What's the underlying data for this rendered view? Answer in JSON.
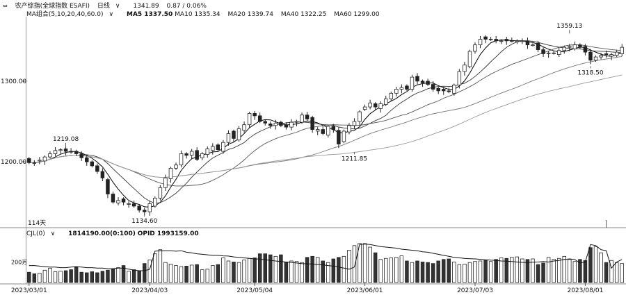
{
  "header": {
    "icons": "⇔",
    "index_name": "农产综指(全球指数 ESAFI)",
    "period": "日线",
    "last": "1341.89",
    "change": "0.87 / 0.06%"
  },
  "ma_header": {
    "label": "MA组合(5,10,20,40,60.0)",
    "ma5": "MA5 1337.50",
    "ma10": "MA10 1335.34",
    "ma20": "MA20 1339.74",
    "ma40": "MA40 1322.25",
    "ma60": "MA60 1299.00"
  },
  "volume_header": {
    "label": "CJL(0)",
    "cjl": "1814190.00(0:100)",
    "opid": "OPID 1993159.00"
  },
  "price_panel_days": "114天",
  "chart_data": {
    "type": "candlestick",
    "y_ticks": [
      {
        "value": 1300,
        "label": "1300.00"
      },
      {
        "value": 1200,
        "label": "1200.00"
      }
    ],
    "ylim": [
      1120,
      1380
    ],
    "volume_tick": {
      "value": 200,
      "label": "200万"
    },
    "volume_lim": [
      0,
      440
    ],
    "x_tick_labels": [
      {
        "index": 0,
        "label": "2023/03/01"
      },
      {
        "index": 23,
        "label": "2023/04/03"
      },
      {
        "index": 43,
        "label": "2023/05/04"
      },
      {
        "index": 64,
        "label": "2023/06/01"
      },
      {
        "index": 85,
        "label": "2023/07/03"
      },
      {
        "index": 106,
        "label": "2023/08/01"
      }
    ],
    "annotations": [
      {
        "index": 7,
        "value": 1219.08,
        "text": "1219.08"
      },
      {
        "index": 22,
        "value": 1134.6,
        "text": "1134.60"
      },
      {
        "index": 62,
        "value": 1211.85,
        "text": "1211.85"
      },
      {
        "index": 103,
        "value": 1359.13,
        "text": "1359.13"
      },
      {
        "index": 107,
        "value": 1318.5,
        "text": "1318.50"
      }
    ],
    "closes": [
      1199,
      1198,
      1202,
      1206,
      1210,
      1214,
      1215,
      1213,
      1212,
      1210,
      1205,
      1200,
      1195,
      1188,
      1180,
      1160,
      1150,
      1152,
      1150,
      1148,
      1145,
      1140,
      1138,
      1148,
      1155,
      1168,
      1180,
      1192,
      1196,
      1210,
      1208,
      1213,
      1203,
      1210,
      1216,
      1219,
      1215,
      1224,
      1235,
      1229,
      1241,
      1246,
      1260,
      1257,
      1250,
      1248,
      1245,
      1248,
      1245,
      1243,
      1249,
      1250,
      1258,
      1253,
      1240,
      1240,
      1235,
      1244,
      1240,
      1222,
      1238,
      1245,
      1250,
      1262,
      1268,
      1273,
      1268,
      1272,
      1278,
      1285,
      1290,
      1292,
      1290,
      1305,
      1300,
      1298,
      1296,
      1290,
      1288,
      1288,
      1287,
      1295,
      1312,
      1320,
      1337,
      1345,
      1352,
      1352,
      1352,
      1350,
      1350,
      1350,
      1350,
      1350,
      1350,
      1345,
      1345,
      1339,
      1334,
      1335,
      1335,
      1338,
      1342,
      1343,
      1345,
      1343,
      1336,
      1326,
      1330,
      1332,
      1333,
      1333,
      1336,
      1342
    ],
    "opens": [
      1204,
      1199,
      1201,
      1201,
      1206,
      1210,
      1214,
      1216,
      1213,
      1213,
      1210,
      1205,
      1200,
      1195,
      1188,
      1178,
      1160,
      1149,
      1154,
      1148,
      1148,
      1145,
      1140,
      1138,
      1145,
      1155,
      1168,
      1179,
      1192,
      1196,
      1210,
      1208,
      1214,
      1205,
      1209,
      1214,
      1221,
      1213,
      1224,
      1238,
      1227,
      1239,
      1246,
      1260,
      1257,
      1250,
      1247,
      1245,
      1249,
      1246,
      1243,
      1249,
      1249,
      1258,
      1255,
      1238,
      1240,
      1233,
      1244,
      1239,
      1225,
      1237,
      1245,
      1250,
      1265,
      1268,
      1272,
      1266,
      1271,
      1278,
      1285,
      1290,
      1294,
      1290,
      1306,
      1300,
      1300,
      1296,
      1291,
      1290,
      1288,
      1285,
      1295,
      1312,
      1318,
      1337,
      1345,
      1355,
      1352,
      1352,
      1350,
      1352,
      1350,
      1349,
      1350,
      1350,
      1345,
      1347,
      1339,
      1334,
      1335,
      1333,
      1338,
      1342,
      1340,
      1345,
      1343,
      1336,
      1326,
      1330,
      1334,
      1331,
      1332,
      1334
    ],
    "volumes": [
      100,
      85,
      90,
      120,
      140,
      105,
      110,
      115,
      125,
      150,
      100,
      95,
      105,
      95,
      110,
      120,
      130,
      145,
      165,
      110,
      125,
      115,
      185,
      220,
      280,
      320,
      195,
      180,
      165,
      155,
      160,
      170,
      175,
      125,
      130,
      165,
      175,
      240,
      210,
      200,
      195,
      220,
      235,
      240,
      280,
      280,
      270,
      255,
      270,
      200,
      210,
      205,
      195,
      245,
      255,
      245,
      210,
      195,
      230,
      245,
      255,
      315,
      360,
      380,
      380,
      345,
      290,
      225,
      235,
      240,
      245,
      260,
      210,
      195,
      210,
      200,
      195,
      185,
      210,
      225,
      230,
      200,
      175,
      180,
      195,
      205,
      210,
      215,
      205,
      225,
      240,
      235,
      245,
      250,
      230,
      225,
      230,
      175,
      190,
      245,
      225,
      235,
      255,
      225,
      205,
      225,
      215,
      340,
      350,
      290,
      195,
      215,
      195,
      185
    ],
    "volume_line": [
      165,
      165,
      160,
      155,
      150,
      150,
      145,
      145,
      150,
      155,
      150,
      145,
      145,
      140,
      140,
      135,
      135,
      140,
      140,
      130,
      120,
      115,
      115,
      130,
      305,
      310,
      310,
      310,
      305,
      310,
      295,
      290,
      280,
      275,
      270,
      265,
      265,
      260,
      258,
      250,
      245,
      240,
      235,
      230,
      228,
      222,
      216,
      210,
      205,
      200,
      196,
      190,
      185,
      182,
      180,
      176,
      172,
      165,
      160,
      150,
      140,
      130,
      150,
      370,
      375,
      370,
      360,
      350,
      345,
      340,
      335,
      325,
      320,
      315,
      310,
      300,
      295,
      285,
      275,
      265,
      255,
      245,
      240,
      235,
      232,
      230,
      226,
      222,
      218,
      215,
      210,
      208,
      205,
      200,
      196,
      195,
      198,
      200,
      205,
      200,
      210,
      215,
      225,
      230,
      225,
      190,
      200,
      370,
      360,
      320,
      310,
      140,
      200,
      225
    ]
  }
}
